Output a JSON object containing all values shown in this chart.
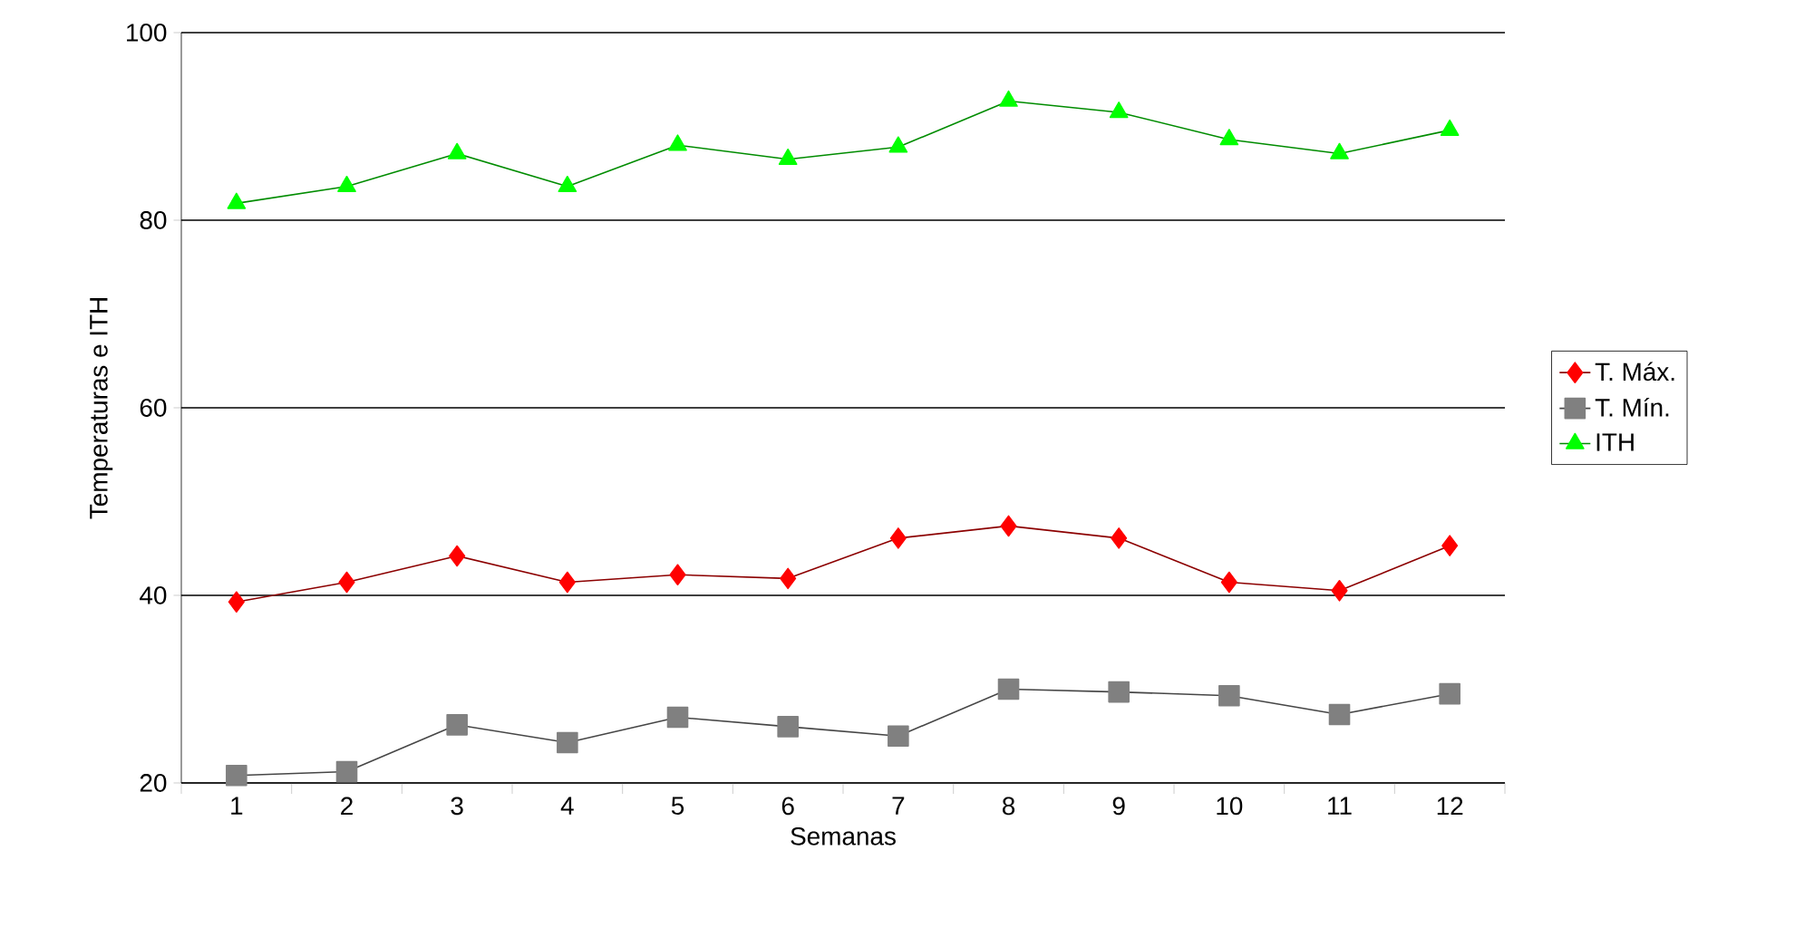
{
  "chart_data": {
    "type": "line",
    "xlabel": "Semanas",
    "ylabel": "Temperaturas e ITH",
    "categories": [
      "1",
      "2",
      "3",
      "4",
      "5",
      "6",
      "7",
      "8",
      "9",
      "10",
      "11",
      "12"
    ],
    "series": [
      {
        "name": "T. Máx.",
        "color": "#ff0000",
        "marker": "diamond",
        "values": [
          39.3,
          41.4,
          44.2,
          41.4,
          42.2,
          41.8,
          46.1,
          47.4,
          46.1,
          41.4,
          40.5,
          45.3
        ]
      },
      {
        "name": "T. Mín.",
        "color": "#808080",
        "marker": "square",
        "values": [
          20.8,
          21.2,
          26.2,
          24.3,
          27.0,
          26.0,
          25.0,
          30.0,
          29.7,
          29.3,
          27.3,
          29.5
        ]
      },
      {
        "name": "ITH",
        "color": "#00ff00",
        "marker": "triangle",
        "values": [
          81.8,
          83.6,
          87.1,
          83.6,
          88.0,
          86.5,
          87.8,
          92.7,
          91.5,
          88.6,
          87.1,
          89.6
        ]
      }
    ],
    "ylim": [
      20,
      100
    ],
    "yticks": [
      20,
      40,
      60,
      80,
      100
    ],
    "grid": "y",
    "legend": "right",
    "line_style": "solid"
  }
}
